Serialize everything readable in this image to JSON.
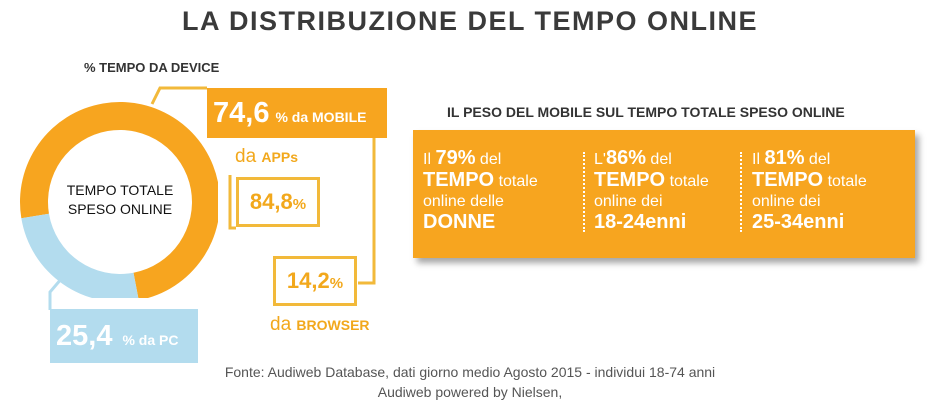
{
  "title": "LA DISTRIBUZIONE DEL TEMPO ONLINE",
  "device_section": {
    "label": "% TEMPO DA DEVICE",
    "center_line1": "TEMPO TOTALE",
    "center_line2": "SPESO ONLINE",
    "mobile_value": "74,6",
    "mobile_suffix": "% da MOBILE",
    "apps_prefix": "da ",
    "apps_label": "APPs",
    "apps_value": "84,8",
    "apps_pct": "%",
    "browser_value": "14,2",
    "browser_pct": "%",
    "browser_prefix": "da ",
    "browser_label": "BROWSER",
    "pc_value": "25,4",
    "pc_suffix": "% da PC"
  },
  "mobile_weight": {
    "title": "IL PESO DEL MOBILE SUL TEMPO TOTALE SPESO ONLINE",
    "stats": [
      {
        "prefix": "Il ",
        "percent": "79%",
        "line1_rest": " del",
        "tempo": "TEMPO",
        "totale": " totale",
        "line3": "online delle",
        "group": "DONNE"
      },
      {
        "prefix": "L'",
        "percent": "86%",
        "line1_rest": " del",
        "tempo": "TEMPO",
        "totale": " totale",
        "line3": "online dei",
        "group": "18-24enni"
      },
      {
        "prefix": "Il ",
        "percent": "81%",
        "line1_rest": " del",
        "tempo": "TEMPO",
        "totale": " totale",
        "line3": "online dei",
        "group": "25-34enni"
      }
    ]
  },
  "source_line1": "Fonte: Audiweb Database, dati giorno medio Agosto 2015 - individui 18-74 anni",
  "source_line2": "Audiweb powered by Nielsen,",
  "colors": {
    "mobile": "#f7a51f",
    "pc": "#b3dcee",
    "outline": "#f2b93a"
  },
  "chart_data": {
    "type": "pie",
    "categories": [
      "MOBILE",
      "PC"
    ],
    "values": [
      74.6,
      25.4
    ],
    "title": "% TEMPO DA DEVICE",
    "sub_breakdown": {
      "APPs": 84.8,
      "BROWSER": 14.2
    }
  }
}
